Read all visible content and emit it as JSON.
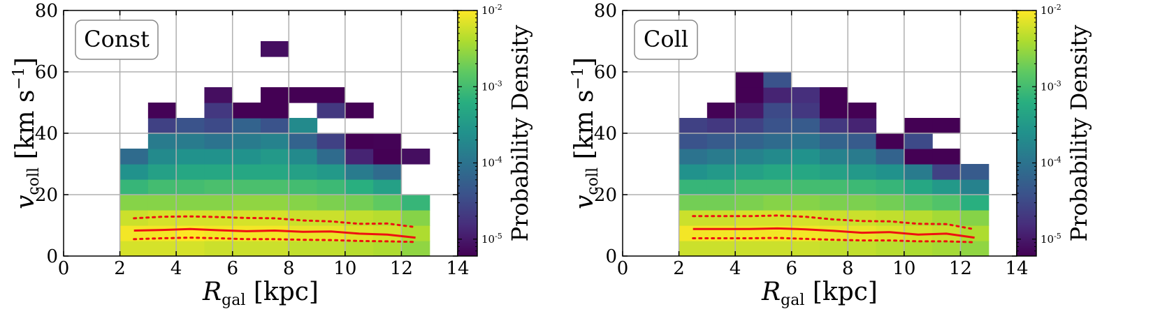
{
  "figure": {
    "colorbar_label": "Probability Density",
    "colorbar_ticks": [
      "10-2",
      "10-3",
      "10-4",
      "10-5"
    ]
  },
  "chart_data": [
    {
      "type": "heatmap",
      "panel_label": "Const",
      "xlabel": "R_gal [kpc]",
      "ylabel": "v_coll [km s^-1]",
      "xlim": [
        0,
        14
      ],
      "ylim": [
        0,
        80
      ],
      "xticks": [
        0,
        2,
        4,
        6,
        8,
        10,
        12,
        14
      ],
      "yticks": [
        0,
        20,
        40,
        60,
        80
      ],
      "grid": true,
      "x_bin_width": 1,
      "y_bin_width": 5,
      "colorbar": {
        "label": "Probability Density",
        "scale": "log",
        "range": [
          6e-06,
          0.01
        ]
      },
      "cells_log10": [
        [
          2,
          0,
          -2.2
        ],
        [
          2,
          5,
          -2.05
        ],
        [
          2,
          10,
          -2.25
        ],
        [
          2,
          15,
          -2.6
        ],
        [
          2,
          20,
          -3.1
        ],
        [
          2,
          25,
          -3.6
        ],
        [
          2,
          30,
          -4.1
        ],
        [
          3,
          0,
          -2.2
        ],
        [
          3,
          5,
          -2.05
        ],
        [
          3,
          10,
          -2.2
        ],
        [
          3,
          15,
          -2.6
        ],
        [
          3,
          20,
          -3.0
        ],
        [
          3,
          25,
          -3.4
        ],
        [
          3,
          30,
          -3.7
        ],
        [
          3,
          35,
          -3.9
        ],
        [
          3,
          40,
          -4.6
        ],
        [
          3,
          45,
          -5.2
        ],
        [
          4,
          0,
          -2.2
        ],
        [
          4,
          5,
          -2.0
        ],
        [
          4,
          10,
          -2.2
        ],
        [
          4,
          15,
          -2.6
        ],
        [
          4,
          20,
          -3.0
        ],
        [
          4,
          25,
          -3.3
        ],
        [
          4,
          30,
          -3.6
        ],
        [
          4,
          35,
          -3.9
        ],
        [
          4,
          40,
          -4.4
        ],
        [
          5,
          0,
          -2.25
        ],
        [
          5,
          5,
          -2.05
        ],
        [
          5,
          10,
          -2.2
        ],
        [
          5,
          15,
          -2.6
        ],
        [
          5,
          20,
          -2.95
        ],
        [
          5,
          25,
          -3.3
        ],
        [
          5,
          30,
          -3.6
        ],
        [
          5,
          35,
          -4.0
        ],
        [
          5,
          40,
          -4.5
        ],
        [
          5,
          45,
          -4.7
        ],
        [
          5,
          50,
          -5.1
        ],
        [
          6,
          0,
          -2.25
        ],
        [
          6,
          5,
          -2.05
        ],
        [
          6,
          10,
          -2.2
        ],
        [
          6,
          15,
          -2.55
        ],
        [
          6,
          20,
          -2.95
        ],
        [
          6,
          25,
          -3.3
        ],
        [
          6,
          30,
          -3.6
        ],
        [
          6,
          35,
          -3.9
        ],
        [
          6,
          40,
          -4.2
        ],
        [
          6,
          45,
          -5.6
        ],
        [
          7,
          0,
          -2.25
        ],
        [
          7,
          5,
          -2.05
        ],
        [
          7,
          10,
          -2.2
        ],
        [
          7,
          15,
          -2.55
        ],
        [
          7,
          20,
          -2.95
        ],
        [
          7,
          25,
          -3.3
        ],
        [
          7,
          30,
          -3.5
        ],
        [
          7,
          35,
          -3.8
        ],
        [
          7,
          40,
          -4.4
        ],
        [
          7,
          45,
          -5.5
        ],
        [
          7,
          50,
          -5.7
        ],
        [
          7,
          65,
          -5.1
        ],
        [
          8,
          0,
          -2.3
        ],
        [
          8,
          5,
          -2.1
        ],
        [
          8,
          10,
          -2.25
        ],
        [
          8,
          15,
          -2.6
        ],
        [
          8,
          20,
          -3.0
        ],
        [
          8,
          25,
          -3.4
        ],
        [
          8,
          30,
          -3.7
        ],
        [
          8,
          35,
          -4.2
        ],
        [
          8,
          40,
          -3.7
        ],
        [
          8,
          50,
          -5.3
        ],
        [
          9,
          0,
          -2.3
        ],
        [
          9,
          5,
          -2.1
        ],
        [
          9,
          10,
          -2.25
        ],
        [
          9,
          15,
          -2.65
        ],
        [
          9,
          20,
          -3.05
        ],
        [
          9,
          25,
          -3.5
        ],
        [
          9,
          30,
          -4.1
        ],
        [
          9,
          35,
          -4.6
        ],
        [
          9,
          45,
          -4.7
        ],
        [
          9,
          50,
          -5.6
        ],
        [
          10,
          0,
          -2.35
        ],
        [
          10,
          5,
          -2.15
        ],
        [
          10,
          10,
          -2.3
        ],
        [
          10,
          15,
          -2.7
        ],
        [
          10,
          20,
          -3.2
        ],
        [
          10,
          25,
          -3.9
        ],
        [
          10,
          30,
          -4.9
        ],
        [
          10,
          35,
          -5.6
        ],
        [
          10,
          45,
          -5.6
        ],
        [
          11,
          0,
          -2.4
        ],
        [
          11,
          5,
          -2.2
        ],
        [
          11,
          10,
          -2.35
        ],
        [
          11,
          15,
          -2.8
        ],
        [
          11,
          20,
          -3.4
        ],
        [
          11,
          25,
          -4.1
        ],
        [
          11,
          30,
          -5.6
        ],
        [
          11,
          35,
          -5.2
        ],
        [
          12,
          0,
          -2.55
        ],
        [
          12,
          5,
          -2.4
        ],
        [
          12,
          10,
          -2.6
        ],
        [
          12,
          15,
          -3.1
        ],
        [
          12,
          30,
          -5.1
        ]
      ],
      "series": [
        {
          "name": "median",
          "style": "solid",
          "color": "#ee1111",
          "x": [
            2.5,
            3.5,
            4.5,
            5.5,
            6.5,
            7.5,
            8.5,
            9.5,
            10.5,
            11.5,
            12.5
          ],
          "y": [
            8.3,
            8.5,
            8.8,
            8.4,
            8.1,
            8.3,
            7.9,
            8.0,
            7.3,
            7.0,
            6.0
          ]
        },
        {
          "name": "upper",
          "style": "dotted",
          "color": "#ee1111",
          "x": [
            2.5,
            3.5,
            4.5,
            5.5,
            6.5,
            7.5,
            8.5,
            9.5,
            10.5,
            11.5,
            12.5
          ],
          "y": [
            12.3,
            12.8,
            12.9,
            12.7,
            12.4,
            12.3,
            11.6,
            11.3,
            10.5,
            10.6,
            9.4
          ]
        },
        {
          "name": "lower",
          "style": "dotted",
          "color": "#ee1111",
          "x": [
            2.5,
            3.5,
            4.5,
            5.5,
            6.5,
            7.5,
            8.5,
            9.5,
            10.5,
            11.5,
            12.5
          ],
          "y": [
            5.5,
            5.8,
            6.0,
            5.8,
            5.5,
            5.5,
            5.3,
            5.2,
            4.9,
            4.8,
            4.6
          ]
        }
      ]
    },
    {
      "type": "heatmap",
      "panel_label": "Coll",
      "xlabel": "R_gal [kpc]",
      "ylabel": "v_coll [km s^-1]",
      "xlim": [
        0,
        14
      ],
      "ylim": [
        0,
        80
      ],
      "xticks": [
        0,
        2,
        4,
        6,
        8,
        10,
        12,
        14
      ],
      "yticks": [
        0,
        20,
        40,
        60,
        80
      ],
      "grid": true,
      "x_bin_width": 1,
      "y_bin_width": 5,
      "colorbar": {
        "label": "Probability Density",
        "scale": "log",
        "range": [
          6e-06,
          0.01
        ]
      },
      "cells_log10": [
        [
          2,
          0,
          -2.25
        ],
        [
          2,
          5,
          -2.05
        ],
        [
          2,
          10,
          -2.25
        ],
        [
          2,
          15,
          -2.7
        ],
        [
          2,
          20,
          -3.1
        ],
        [
          2,
          25,
          -3.6
        ],
        [
          2,
          30,
          -4.0
        ],
        [
          2,
          35,
          -4.4
        ],
        [
          2,
          40,
          -4.6
        ],
        [
          3,
          0,
          -2.25
        ],
        [
          3,
          5,
          -2.05
        ],
        [
          3,
          10,
          -2.25
        ],
        [
          3,
          15,
          -2.7
        ],
        [
          3,
          20,
          -3.1
        ],
        [
          3,
          25,
          -3.5
        ],
        [
          3,
          30,
          -3.9
        ],
        [
          3,
          35,
          -4.3
        ],
        [
          3,
          40,
          -4.7
        ],
        [
          3,
          45,
          -5.2
        ],
        [
          4,
          0,
          -2.25
        ],
        [
          4,
          5,
          -2.05
        ],
        [
          4,
          10,
          -2.2
        ],
        [
          4,
          15,
          -2.65
        ],
        [
          4,
          20,
          -3.0
        ],
        [
          4,
          25,
          -3.4
        ],
        [
          4,
          30,
          -3.8
        ],
        [
          4,
          35,
          -4.2
        ],
        [
          4,
          40,
          -4.6
        ],
        [
          4,
          45,
          -5.0
        ],
        [
          4,
          50,
          -5.5
        ],
        [
          4,
          55,
          -5.6
        ],
        [
          5,
          0,
          -2.25
        ],
        [
          5,
          5,
          -2.05
        ],
        [
          5,
          10,
          -2.2
        ],
        [
          5,
          15,
          -2.6
        ],
        [
          5,
          20,
          -3.0
        ],
        [
          5,
          25,
          -3.3
        ],
        [
          5,
          30,
          -3.7
        ],
        [
          5,
          35,
          -4.1
        ],
        [
          5,
          40,
          -4.4
        ],
        [
          5,
          45,
          -4.5
        ],
        [
          5,
          50,
          -4.9
        ],
        [
          5,
          55,
          -4.4
        ],
        [
          6,
          0,
          -2.25
        ],
        [
          6,
          5,
          -2.05
        ],
        [
          6,
          10,
          -2.2
        ],
        [
          6,
          15,
          -2.6
        ],
        [
          6,
          20,
          -3.0
        ],
        [
          6,
          25,
          -3.3
        ],
        [
          6,
          30,
          -3.6
        ],
        [
          6,
          35,
          -4.0
        ],
        [
          6,
          40,
          -4.3
        ],
        [
          6,
          45,
          -4.7
        ],
        [
          6,
          50,
          -4.8
        ],
        [
          7,
          0,
          -2.3
        ],
        [
          7,
          5,
          -2.1
        ],
        [
          7,
          10,
          -2.25
        ],
        [
          7,
          15,
          -2.65
        ],
        [
          7,
          20,
          -3.0
        ],
        [
          7,
          25,
          -3.4
        ],
        [
          7,
          30,
          -3.8
        ],
        [
          7,
          35,
          -4.2
        ],
        [
          7,
          40,
          -4.7
        ],
        [
          7,
          45,
          -5.5
        ],
        [
          7,
          50,
          -5.7
        ],
        [
          8,
          0,
          -2.3
        ],
        [
          8,
          5,
          -2.1
        ],
        [
          8,
          10,
          -2.25
        ],
        [
          8,
          15,
          -2.65
        ],
        [
          8,
          20,
          -3.05
        ],
        [
          8,
          25,
          -3.5
        ],
        [
          8,
          30,
          -3.9
        ],
        [
          8,
          35,
          -4.3
        ],
        [
          8,
          40,
          -4.9
        ],
        [
          8,
          45,
          -5.6
        ],
        [
          9,
          0,
          -2.35
        ],
        [
          9,
          5,
          -2.15
        ],
        [
          9,
          10,
          -2.3
        ],
        [
          9,
          15,
          -2.7
        ],
        [
          9,
          20,
          -3.1
        ],
        [
          9,
          25,
          -3.6
        ],
        [
          9,
          30,
          -4.2
        ],
        [
          9,
          35,
          -5.5
        ],
        [
          10,
          0,
          -2.4
        ],
        [
          10,
          5,
          -2.2
        ],
        [
          10,
          10,
          -2.35
        ],
        [
          10,
          15,
          -2.8
        ],
        [
          10,
          20,
          -3.3
        ],
        [
          10,
          25,
          -3.9
        ],
        [
          10,
          30,
          -5.6
        ],
        [
          10,
          35,
          -4.5
        ],
        [
          10,
          40,
          -5.6
        ],
        [
          11,
          0,
          -2.45
        ],
        [
          11,
          5,
          -2.25
        ],
        [
          11,
          10,
          -2.45
        ],
        [
          11,
          15,
          -2.9
        ],
        [
          11,
          20,
          -3.5
        ],
        [
          11,
          25,
          -4.6
        ],
        [
          11,
          30,
          -5.6
        ],
        [
          11,
          40,
          -5.6
        ],
        [
          12,
          0,
          -2.55
        ],
        [
          12,
          5,
          -2.4
        ],
        [
          12,
          10,
          -2.6
        ],
        [
          12,
          15,
          -3.2
        ],
        [
          12,
          20,
          -3.8
        ],
        [
          12,
          25,
          -4.3
        ]
      ],
      "series": [
        {
          "name": "median",
          "style": "solid",
          "color": "#ee1111",
          "x": [
            2.5,
            3.5,
            4.5,
            5.5,
            6.5,
            7.5,
            8.5,
            9.5,
            10.5,
            11.5,
            12.5
          ],
          "y": [
            8.8,
            8.8,
            8.8,
            9.0,
            8.7,
            8.2,
            7.6,
            7.8,
            7.0,
            7.3,
            6.0
          ]
        },
        {
          "name": "upper",
          "style": "dotted",
          "color": "#ee1111",
          "x": [
            2.5,
            3.5,
            4.5,
            5.5,
            6.5,
            7.5,
            8.5,
            9.5,
            10.5,
            11.5,
            12.5
          ],
          "y": [
            13.0,
            13.0,
            13.0,
            13.2,
            12.8,
            11.9,
            11.4,
            11.3,
            10.5,
            10.4,
            8.7
          ]
        },
        {
          "name": "lower",
          "style": "dotted",
          "color": "#ee1111",
          "x": [
            2.5,
            3.5,
            4.5,
            5.5,
            6.5,
            7.5,
            8.5,
            9.5,
            10.5,
            11.5,
            12.5
          ],
          "y": [
            5.8,
            5.8,
            5.8,
            5.9,
            5.6,
            5.3,
            5.1,
            5.1,
            4.8,
            4.8,
            4.5
          ]
        }
      ]
    }
  ]
}
